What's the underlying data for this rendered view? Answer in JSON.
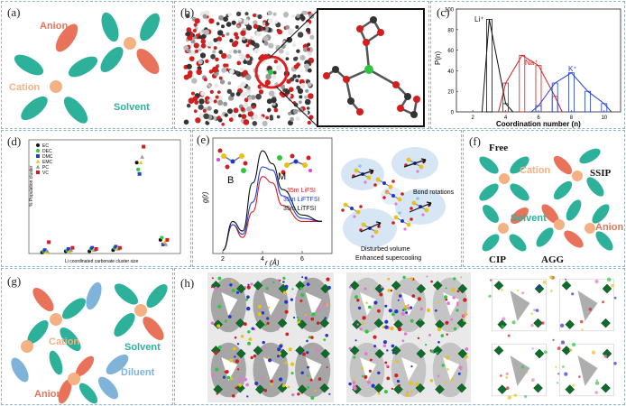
{
  "colors": {
    "anion": "#e8735a",
    "cation": "#f4b183",
    "solvent": "#2eb19a",
    "diluent": "#7fb3d9",
    "border": "#8fb3c9"
  },
  "panel_a": {
    "label": "(a)",
    "anion": "Anion",
    "cation": "Cation",
    "solvent": "Solvent"
  },
  "panel_b": {
    "label": "(b)"
  },
  "panel_c": {
    "label": "(c)",
    "xlabel": "Coordination number (n)",
    "ylabel": "P(n)",
    "series_labels": {
      "li": "Li⁺",
      "na": "Na⁺",
      "k": "K⁺"
    },
    "xticks": [
      "2",
      "4",
      "6",
      "8",
      "10"
    ],
    "yticks": [
      "0",
      "20",
      "40",
      "60",
      "80",
      "100"
    ]
  },
  "panel_d": {
    "label": "(d)",
    "xlabel": "Li coordinated carbonate cluster size",
    "ylabel": "% Population cluster",
    "legend": [
      "EC",
      "DEC",
      "DMC",
      "EMC",
      "PC",
      "VC"
    ]
  },
  "panel_e": {
    "label": "(e)",
    "ylabel": "g(r)",
    "xlabel": "r (Å)",
    "legend": [
      "35m LiFSI",
      "35m LiFTFSI",
      "35m LiTFSI"
    ],
    "b_label": "B",
    "m_label": "M",
    "bond": "Bond rotations",
    "disturbed": "Disturbed volume",
    "supercool": "Enhanced supercooling",
    "xticks": [
      "2",
      "4",
      "6"
    ]
  },
  "panel_f": {
    "label": "(f)",
    "free": "Free",
    "cation": "Cation",
    "ssip": "SSIP",
    "solvent": "Solvent",
    "anion": "Anion",
    "cip": "CIP",
    "agg": "AGG"
  },
  "panel_g": {
    "label": "(g)",
    "cation": "Cation",
    "solvent": "Solvent",
    "anion": "Anion",
    "diluent": "Diluent"
  },
  "panel_h": {
    "label": "(h)"
  },
  "chart_data": [
    {
      "type": "bar",
      "title": "",
      "xlabel": "Coordination number (n)",
      "ylabel": "P(n)",
      "ylim": [
        0,
        100
      ],
      "x": [
        2,
        3,
        4,
        5,
        6,
        7,
        8,
        9,
        10
      ],
      "series": [
        {
          "name": "Li⁺",
          "x": [
            3,
            4
          ],
          "values": [
            90,
            8
          ]
        },
        {
          "name": "Na⁺",
          "x": [
            4,
            5,
            6,
            7
          ],
          "values": [
            28,
            55,
            45,
            15
          ]
        },
        {
          "name": "K⁺",
          "x": [
            6,
            7,
            8,
            9,
            10
          ],
          "values": [
            6,
            28,
            38,
            20,
            8
          ]
        }
      ]
    },
    {
      "type": "scatter",
      "title": "",
      "xlabel": "Li coordinated carbonate cluster size",
      "ylabel": "% Population cluster",
      "ylim": [
        0,
        100
      ],
      "series": [
        {
          "name": "EC",
          "x": [
            1,
            2,
            3,
            4,
            5,
            6
          ],
          "values": [
            1,
            2,
            2,
            3,
            80,
            12
          ]
        },
        {
          "name": "DEC",
          "x": [
            1,
            2,
            3,
            4,
            5,
            6
          ],
          "values": [
            2,
            3,
            4,
            5,
            74,
            14
          ]
        },
        {
          "name": "DMC",
          "x": [
            1,
            2,
            3,
            4,
            5,
            6
          ],
          "values": [
            3,
            4,
            5,
            6,
            70,
            8
          ]
        },
        {
          "name": "EMC",
          "x": [
            1,
            2,
            3,
            4,
            5,
            6
          ],
          "values": [
            1,
            2,
            3,
            4,
            80,
            10
          ]
        },
        {
          "name": "PC",
          "x": [
            1,
            2,
            3,
            4,
            5,
            6
          ],
          "values": [
            2,
            3,
            3,
            4,
            85,
            8
          ]
        },
        {
          "name": "VC",
          "x": [
            1,
            2,
            3,
            4,
            5,
            6
          ],
          "values": [
            10,
            5,
            4,
            5,
            94,
            12
          ]
        }
      ]
    },
    {
      "type": "line",
      "title": "",
      "xlabel": "r (Å)",
      "ylabel": "g(r)",
      "xlim": [
        1.5,
        7.5
      ],
      "series": [
        {
          "name": "35m LiFSI",
          "x": [
            2,
            2.5,
            3,
            3.5,
            4,
            4.5,
            5,
            6,
            7
          ],
          "values": [
            0.1,
            0.9,
            0.5,
            1.3,
            2.4,
            2.2,
            1.5,
            1.0,
            1.0
          ]
        },
        {
          "name": "35m LiFTFSI",
          "x": [
            2,
            2.5,
            3,
            3.5,
            4,
            4.5,
            5,
            6,
            7
          ],
          "values": [
            0.1,
            0.9,
            0.6,
            1.6,
            2.7,
            2.6,
            1.8,
            1.1,
            1.0
          ]
        },
        {
          "name": "35m LiTFSI",
          "x": [
            2,
            2.5,
            3,
            3.5,
            4,
            4.5,
            5,
            6,
            7
          ],
          "values": [
            0.1,
            1.0,
            0.7,
            2.2,
            3.2,
            2.8,
            2.0,
            1.2,
            1.0
          ]
        }
      ]
    }
  ]
}
